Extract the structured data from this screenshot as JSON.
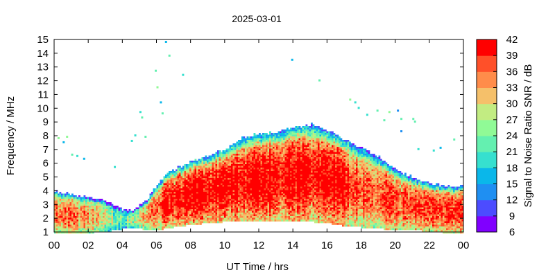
{
  "chart_data": {
    "type": "heatmap",
    "title": "2025-03-01",
    "xlabel": "UT Time / hrs",
    "ylabel": "Frequency / MHz",
    "colorbar_label": "Signal to Noise Ratio SNR / dB",
    "xlim": [
      0,
      24
    ],
    "ylim": [
      1,
      15
    ],
    "x_ticks": [
      "00",
      "02",
      "04",
      "06",
      "08",
      "10",
      "12",
      "14",
      "16",
      "18",
      "20",
      "22",
      "00"
    ],
    "y_ticks": [
      "1",
      "2",
      "3",
      "4",
      "5",
      "6",
      "7",
      "8",
      "9",
      "10",
      "11",
      "12",
      "13",
      "14",
      "15"
    ],
    "color_scale": {
      "ticks": [
        "6",
        "9",
        "12",
        "15",
        "18",
        "21",
        "24",
        "27",
        "30",
        "33",
        "36",
        "39",
        "42"
      ],
      "min": 6,
      "max": 42,
      "colors": [
        "#8000ff",
        "#4c4cff",
        "#1f8ff2",
        "#0ab7ea",
        "#36e0cf",
        "#64f0b0",
        "#90fa96",
        "#c2ec82",
        "#f5c06a",
        "#ff8c4a",
        "#ff5029",
        "#ff0000"
      ]
    },
    "band_profile": {
      "description_hours": [
        0,
        1,
        2,
        3,
        3.5,
        4,
        4.5,
        5,
        5.5,
        6,
        6.5,
        7,
        7.5,
        8,
        9,
        10,
        11,
        12,
        13,
        14,
        15,
        16,
        16.5,
        17,
        18,
        19,
        20,
        21,
        22,
        23,
        24
      ],
      "upper_edge_mhz": [
        4.0,
        3.8,
        3.6,
        3.3,
        3.0,
        2.7,
        2.6,
        3.0,
        3.6,
        4.5,
        5.2,
        5.6,
        5.9,
        6.2,
        6.6,
        7.1,
        7.9,
        8.2,
        8.3,
        8.7,
        8.9,
        8.4,
        8.1,
        7.8,
        7.2,
        6.5,
        5.6,
        5.0,
        4.6,
        4.4,
        4.4
      ],
      "lower_edge_mhz": [
        1.0,
        1.0,
        1.0,
        1.1,
        1.2,
        1.3,
        1.4,
        1.3,
        1.2,
        1.2,
        1.3,
        1.4,
        1.5,
        1.6,
        1.7,
        1.8,
        1.8,
        1.8,
        1.8,
        1.8,
        1.8,
        1.7,
        1.6,
        1.5,
        1.4,
        1.3,
        1.2,
        1.2,
        1.1,
        1.0,
        1.0
      ],
      "peak_snr_db": [
        36,
        36,
        34,
        30,
        26,
        22,
        24,
        30,
        36,
        39,
        41,
        41,
        42,
        42,
        42,
        42,
        42,
        42,
        42,
        42,
        42,
        42,
        42,
        40,
        39,
        38,
        38,
        39,
        39,
        39,
        39
      ]
    }
  }
}
